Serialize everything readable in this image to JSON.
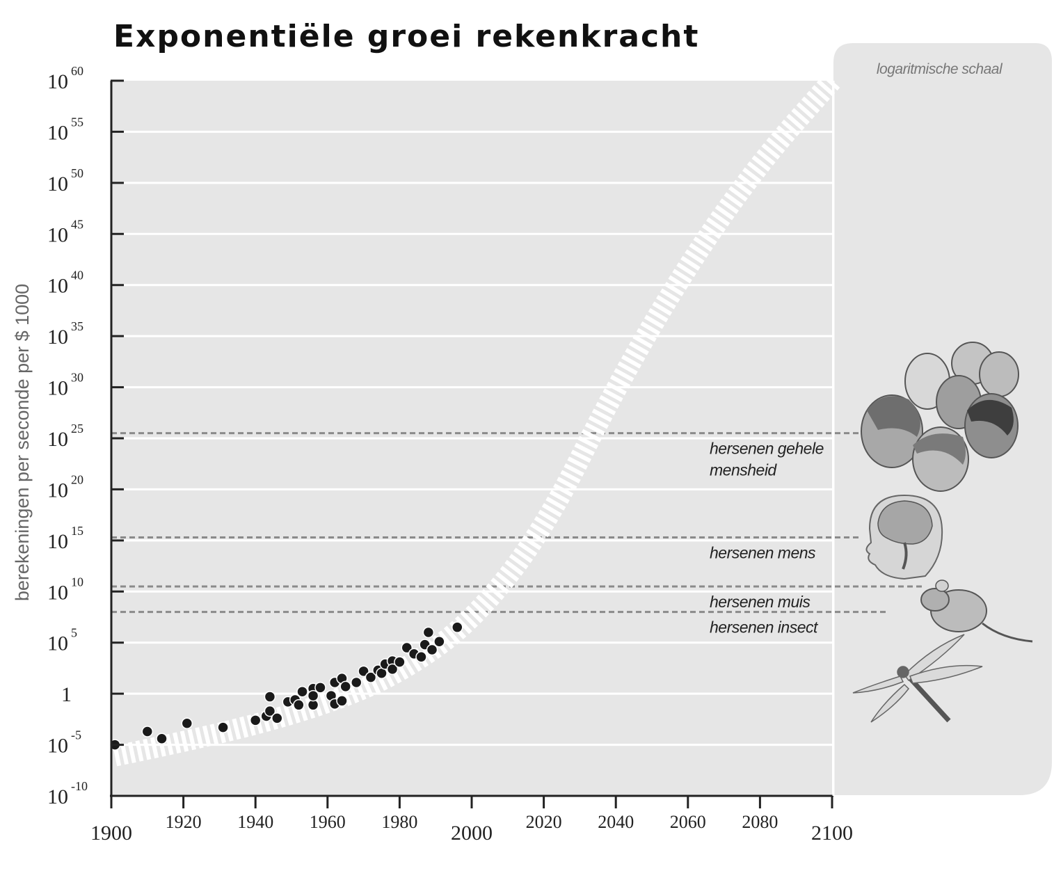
{
  "chart_data": {
    "type": "scatter",
    "title": "Exponentiële groei rekenkracht",
    "ylabel": "berekeningen per seconde per $ 1000",
    "xlabel": "",
    "scale_note": "logaritmische schaal",
    "y_scale": "log10",
    "xlim": [
      1900,
      2100
    ],
    "ylim_exponent": [
      -10,
      60
    ],
    "x_ticks": [
      {
        "value": 1900,
        "label": "1900",
        "major": true
      },
      {
        "value": 1920,
        "label": "1920",
        "major": false
      },
      {
        "value": 1940,
        "label": "1940",
        "major": false
      },
      {
        "value": 1960,
        "label": "1960",
        "major": false
      },
      {
        "value": 1980,
        "label": "1980",
        "major": false
      },
      {
        "value": 2000,
        "label": "2000",
        "major": true
      },
      {
        "value": 2020,
        "label": "2020",
        "major": false
      },
      {
        "value": 2040,
        "label": "2040",
        "major": false
      },
      {
        "value": 2060,
        "label": "2060",
        "major": false
      },
      {
        "value": 2080,
        "label": "2080",
        "major": false
      },
      {
        "value": 2100,
        "label": "2100",
        "major": true
      }
    ],
    "y_ticks": [
      {
        "exponent": 60,
        "base": "10",
        "sup": "60"
      },
      {
        "exponent": 55,
        "base": "10",
        "sup": "55"
      },
      {
        "exponent": 50,
        "base": "10",
        "sup": "50"
      },
      {
        "exponent": 45,
        "base": "10",
        "sup": "45"
      },
      {
        "exponent": 40,
        "base": "10",
        "sup": "40"
      },
      {
        "exponent": 35,
        "base": "10",
        "sup": "35"
      },
      {
        "exponent": 30,
        "base": "10",
        "sup": "30"
      },
      {
        "exponent": 25,
        "base": "10",
        "sup": "25"
      },
      {
        "exponent": 20,
        "base": "10",
        "sup": "20"
      },
      {
        "exponent": 15,
        "base": "10",
        "sup": "15"
      },
      {
        "exponent": 10,
        "base": "10",
        "sup": "10"
      },
      {
        "exponent": 5,
        "base": "10",
        "sup": "5"
      },
      {
        "exponent": 0,
        "base": "1",
        "sup": ""
      },
      {
        "exponent": -5,
        "base": "10",
        "sup": "-5"
      },
      {
        "exponent": -10,
        "base": "10",
        "sup": "-10"
      }
    ],
    "points": [
      [
        1901,
        -5
      ],
      [
        1910,
        -3.7
      ],
      [
        1914,
        -4.4
      ],
      [
        1921,
        -2.9
      ],
      [
        1931,
        -3.3
      ],
      [
        1940,
        -2.6
      ],
      [
        1943,
        -2.2
      ],
      [
        1944,
        -1.7
      ],
      [
        1944,
        -0.3
      ],
      [
        1946,
        -2.4
      ],
      [
        1949,
        -0.8
      ],
      [
        1951,
        -0.6
      ],
      [
        1952,
        -1.1
      ],
      [
        1953,
        0.2
      ],
      [
        1956,
        0.5
      ],
      [
        1956,
        -1.1
      ],
      [
        1956,
        -0.2
      ],
      [
        1958,
        0.6
      ],
      [
        1961,
        -0.2
      ],
      [
        1962,
        -1.0
      ],
      [
        1962,
        1.1
      ],
      [
        1964,
        -0.7
      ],
      [
        1964,
        1.5
      ],
      [
        1965,
        0.7
      ],
      [
        1968,
        1.1
      ],
      [
        1970,
        2.2
      ],
      [
        1972,
        1.6
      ],
      [
        1974,
        2.3
      ],
      [
        1975,
        2.0
      ],
      [
        1976,
        2.9
      ],
      [
        1978,
        3.2
      ],
      [
        1978,
        2.4
      ],
      [
        1980,
        3.1
      ],
      [
        1982,
        4.5
      ],
      [
        1984,
        3.9
      ],
      [
        1986,
        3.6
      ],
      [
        1987,
        4.8
      ],
      [
        1988,
        6.0
      ],
      [
        1989,
        4.3
      ],
      [
        1991,
        5.1
      ],
      [
        1996,
        6.5
      ]
    ],
    "trend": [
      [
        1901,
        -6.1
      ],
      [
        1930,
        -4
      ],
      [
        1960,
        -1
      ],
      [
        1980,
        2
      ],
      [
        2000,
        7
      ],
      [
        2020,
        16
      ],
      [
        2040,
        30
      ],
      [
        2060,
        42
      ],
      [
        2080,
        52
      ],
      [
        2100,
        60
      ]
    ],
    "annotations": [
      {
        "exponent": 25.5,
        "lines": [
          "hersenen gehele",
          "mensheid"
        ]
      },
      {
        "exponent": 15.3,
        "lines": [
          "hersenen mens"
        ]
      },
      {
        "exponent": 10.5,
        "lines": [
          "hersenen muis"
        ]
      },
      {
        "exponent": 8,
        "lines": [
          "hersenen insect"
        ]
      }
    ]
  },
  "illustrations": [
    "faces-icon",
    "brain-head-icon",
    "mouse-icon",
    "dragonfly-icon"
  ]
}
